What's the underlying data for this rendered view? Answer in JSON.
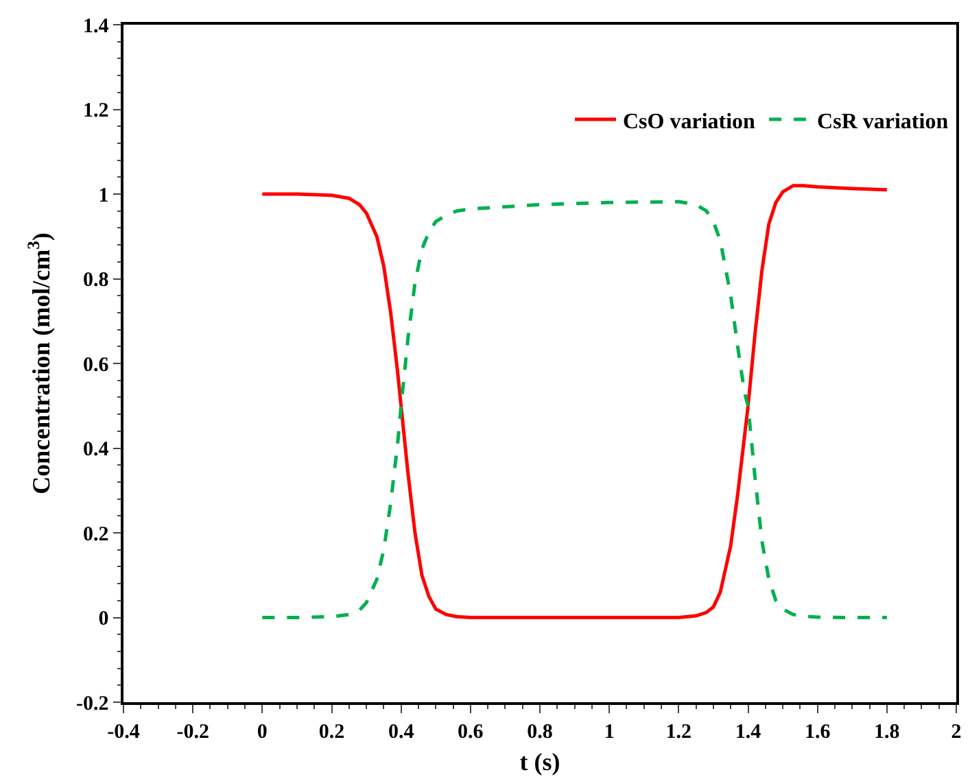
{
  "chart_data": {
    "type": "line",
    "xlabel": "t (s)",
    "ylabel": "Concentration (mol/cm$^{3}$)",
    "x": [
      0,
      0.1,
      0.2,
      0.25,
      0.28,
      0.3,
      0.33,
      0.35,
      0.37,
      0.39,
      0.4,
      0.42,
      0.44,
      0.46,
      0.48,
      0.5,
      0.53,
      0.56,
      0.6,
      0.8,
      1.0,
      1.2,
      1.25,
      1.28,
      1.3,
      1.32,
      1.35,
      1.37,
      1.39,
      1.4,
      1.42,
      1.44,
      1.46,
      1.48,
      1.5,
      1.53,
      1.56,
      1.6,
      1.7,
      1.8
    ],
    "series": [
      {
        "name": "CsO variation",
        "color": "#ff0000",
        "line_style": "solid",
        "values": [
          1.0,
          1.0,
          0.997,
          0.99,
          0.975,
          0.955,
          0.9,
          0.83,
          0.72,
          0.58,
          0.5,
          0.34,
          0.2,
          0.1,
          0.05,
          0.02,
          0.007,
          0.002,
          0,
          0,
          0,
          0,
          0.004,
          0.012,
          0.025,
          0.06,
          0.17,
          0.29,
          0.43,
          0.5,
          0.67,
          0.82,
          0.93,
          0.98,
          1.005,
          1.02,
          1.02,
          1.017,
          1.013,
          1.01
        ]
      },
      {
        "name": "CsR variation",
        "color": "#00b050",
        "line_style": "dashed",
        "values": [
          0,
          0,
          0.002,
          0.007,
          0.017,
          0.035,
          0.09,
          0.16,
          0.27,
          0.41,
          0.5,
          0.66,
          0.79,
          0.87,
          0.91,
          0.935,
          0.95,
          0.96,
          0.965,
          0.975,
          0.98,
          0.982,
          0.975,
          0.96,
          0.935,
          0.89,
          0.76,
          0.64,
          0.53,
          0.5,
          0.33,
          0.18,
          0.09,
          0.04,
          0.02,
          0.007,
          0.003,
          0.001,
          0,
          0
        ]
      }
    ],
    "xlim": [
      -0.4,
      2
    ],
    "xticks": [
      -0.4,
      -0.2,
      0,
      0.2,
      0.4,
      0.6,
      0.8,
      1,
      1.2,
      1.4,
      1.6,
      1.8,
      2
    ],
    "ylim": [
      -0.2,
      1.4
    ],
    "yticks": [
      -0.2,
      0,
      0.2,
      0.4,
      0.6,
      0.8,
      1,
      1.2,
      1.4
    ],
    "grid": false,
    "legend": "top right",
    "marker": "none"
  }
}
